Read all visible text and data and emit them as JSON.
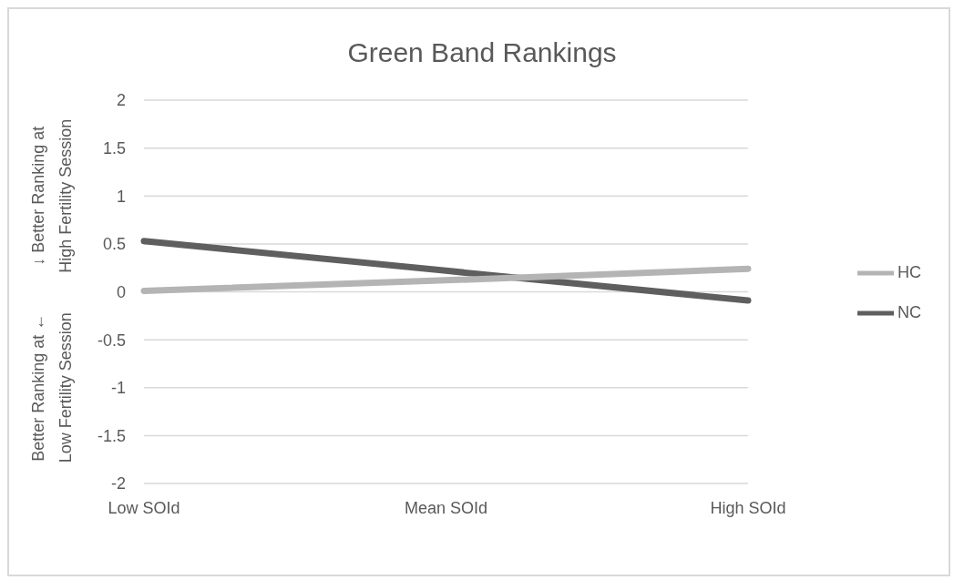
{
  "chart_data": {
    "type": "line",
    "title": "Green Band Rankings",
    "ylabel": "Better Ranking at ←  ↓ Better Ranking at\nLow Fertility Session  High Fertility Session",
    "categories": [
      "Low SOId",
      "Mean SOId",
      "High SOId"
    ],
    "series": [
      {
        "name": "NC",
        "color": "#5f5f5f",
        "values": [
          0.53,
          0.22,
          -0.09
        ]
      },
      {
        "name": "HC",
        "color": "#b4b4b4",
        "values": [
          0.01,
          0.12,
          0.24
        ]
      }
    ],
    "ylim": [
      -2,
      2
    ],
    "yticks": [
      -2,
      -1.5,
      -1,
      -0.5,
      0,
      0.5,
      1,
      1.5,
      2
    ],
    "grid": "y",
    "legend": "right",
    "marker": "none",
    "line_style": "solid"
  }
}
